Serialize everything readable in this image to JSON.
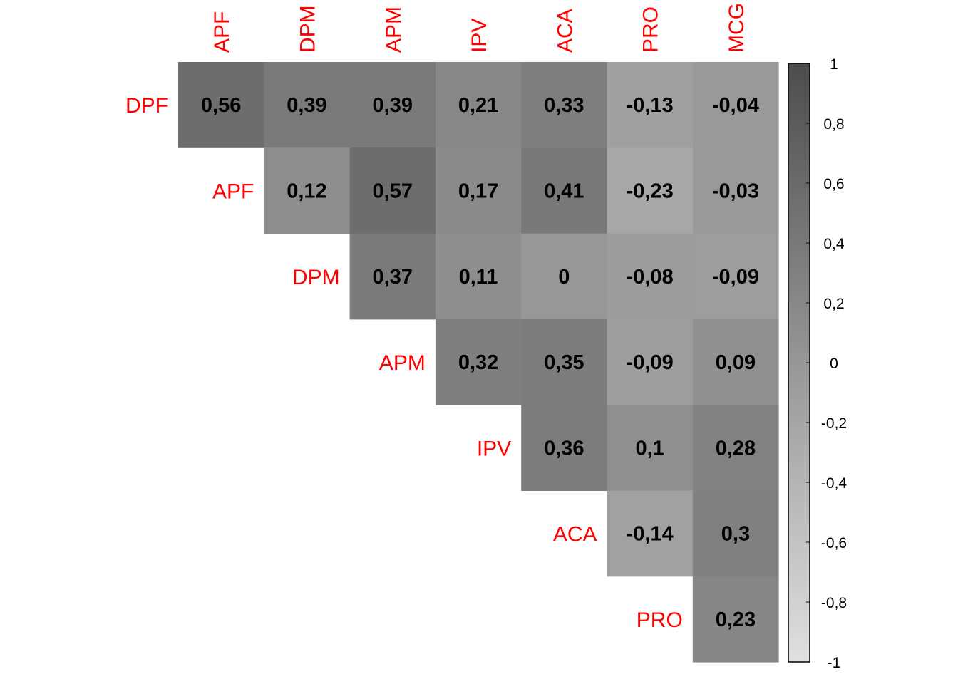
{
  "chart_data": {
    "type": "heatmap",
    "title": "",
    "column_labels": [
      "APF",
      "DPM",
      "APM",
      "IPV",
      "ACA",
      "PRO",
      "MCG"
    ],
    "row_labels": [
      "DPF",
      "APF",
      "DPM",
      "APM",
      "IPV",
      "ACA",
      "PRO"
    ],
    "cells": [
      {
        "row": 0,
        "col": 0,
        "value": 0.56,
        "label": "0,56"
      },
      {
        "row": 0,
        "col": 1,
        "value": 0.39,
        "label": "0,39"
      },
      {
        "row": 0,
        "col": 2,
        "value": 0.39,
        "label": "0,39"
      },
      {
        "row": 0,
        "col": 3,
        "value": 0.21,
        "label": "0,21"
      },
      {
        "row": 0,
        "col": 4,
        "value": 0.33,
        "label": "0,33"
      },
      {
        "row": 0,
        "col": 5,
        "value": -0.13,
        "label": "-0,13"
      },
      {
        "row": 0,
        "col": 6,
        "value": -0.04,
        "label": "-0,04"
      },
      {
        "row": 1,
        "col": 1,
        "value": 0.12,
        "label": "0,12"
      },
      {
        "row": 1,
        "col": 2,
        "value": 0.57,
        "label": "0,57"
      },
      {
        "row": 1,
        "col": 3,
        "value": 0.17,
        "label": "0,17"
      },
      {
        "row": 1,
        "col": 4,
        "value": 0.41,
        "label": "0,41"
      },
      {
        "row": 1,
        "col": 5,
        "value": -0.23,
        "label": "-0,23"
      },
      {
        "row": 1,
        "col": 6,
        "value": -0.03,
        "label": "-0,03"
      },
      {
        "row": 2,
        "col": 2,
        "value": 0.37,
        "label": "0,37"
      },
      {
        "row": 2,
        "col": 3,
        "value": 0.11,
        "label": "0,11"
      },
      {
        "row": 2,
        "col": 4,
        "value": 0,
        "label": "0"
      },
      {
        "row": 2,
        "col": 5,
        "value": -0.08,
        "label": "-0,08"
      },
      {
        "row": 2,
        "col": 6,
        "value": -0.09,
        "label": "-0,09"
      },
      {
        "row": 3,
        "col": 3,
        "value": 0.32,
        "label": "0,32"
      },
      {
        "row": 3,
        "col": 4,
        "value": 0.35,
        "label": "0,35"
      },
      {
        "row": 3,
        "col": 5,
        "value": -0.09,
        "label": "-0,09"
      },
      {
        "row": 3,
        "col": 6,
        "value": 0.09,
        "label": "0,09"
      },
      {
        "row": 4,
        "col": 4,
        "value": 0.36,
        "label": "0,36"
      },
      {
        "row": 4,
        "col": 5,
        "value": 0.1,
        "label": "0,1"
      },
      {
        "row": 4,
        "col": 6,
        "value": 0.28,
        "label": "0,28"
      },
      {
        "row": 5,
        "col": 5,
        "value": -0.14,
        "label": "-0,14"
      },
      {
        "row": 5,
        "col": 6,
        "value": 0.3,
        "label": "0,3"
      },
      {
        "row": 6,
        "col": 6,
        "value": 0.23,
        "label": "0,23"
      }
    ],
    "colorbar": {
      "range": [
        -1,
        1
      ],
      "ticks": [
        {
          "value": 1,
          "label": "1"
        },
        {
          "value": 0.8,
          "label": "0,8"
        },
        {
          "value": 0.6,
          "label": "0,6"
        },
        {
          "value": 0.4,
          "label": "0,4"
        },
        {
          "value": 0.2,
          "label": "0,2"
        },
        {
          "value": 0,
          "label": "0"
        },
        {
          "value": -0.2,
          "label": "-0,2"
        },
        {
          "value": -0.4,
          "label": "-0,4"
        },
        {
          "value": -0.6,
          "label": "-0,6"
        },
        {
          "value": -0.8,
          "label": "-0,8"
        },
        {
          "value": -1,
          "label": "-1"
        }
      ],
      "color_low": "#e0e0e0",
      "color_high": "#4d4d4d"
    },
    "label_color": "#ff0000",
    "value_text_color": "#000000",
    "grid": false,
    "legend_position": "right"
  }
}
